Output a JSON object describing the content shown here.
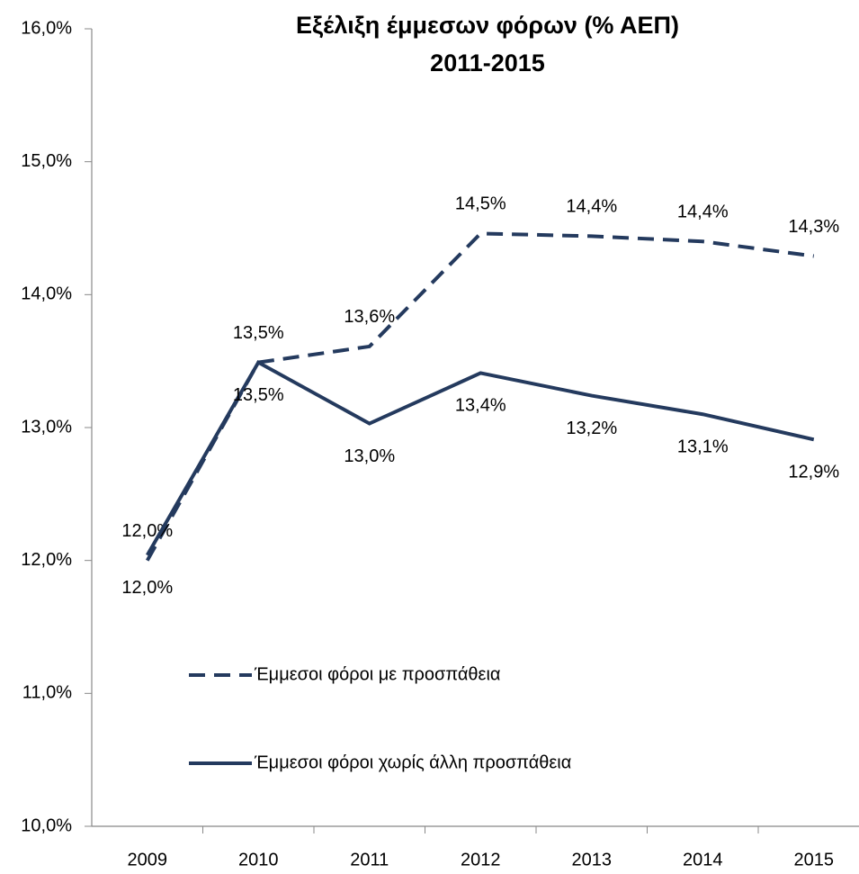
{
  "chart_data": {
    "type": "line",
    "title": "Εξέλιξη έμμεσων φόρων (% ΑΕΠ)",
    "subtitle": "2011-2015",
    "categories": [
      "2009",
      "2010",
      "2011",
      "2012",
      "2013",
      "2014",
      "2015"
    ],
    "series": [
      {
        "name": "Έμμεσοι φόροι με προσπάθεια",
        "color": "#243a5e",
        "dashed": true,
        "values": [
          12.0,
          13.49,
          13.61,
          14.46,
          14.44,
          14.4,
          14.29
        ],
        "value_labels": [
          "12,0%",
          "13,5%",
          "13,6%",
          "14,5%",
          "14,4%",
          "14,4%",
          "14,3%"
        ]
      },
      {
        "name": "Έμμεσοι φόροι χωρίς άλλη προσπάθεια",
        "color": "#243a5e",
        "dashed": false,
        "values": [
          12.04,
          13.49,
          13.03,
          13.41,
          13.24,
          13.1,
          12.91
        ],
        "value_labels": [
          "12,0%",
          "13,5%",
          "13,0%",
          "13,4%",
          "13,2%",
          "13,1%",
          "12,9%"
        ]
      }
    ],
    "ylim": [
      10,
      16
    ],
    "yticks": [
      {
        "value": 10,
        "label": "10,0%"
      },
      {
        "value": 11,
        "label": "11,0%"
      },
      {
        "value": 12,
        "label": "12,0%"
      },
      {
        "value": 13,
        "label": "13,0%"
      },
      {
        "value": 14,
        "label": "14,0%"
      },
      {
        "value": 15,
        "label": "15,0%"
      },
      {
        "value": 16,
        "label": "16,0%"
      }
    ],
    "grid": false
  }
}
